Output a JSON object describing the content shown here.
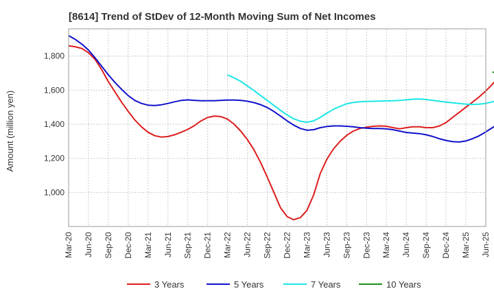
{
  "chart_data": {
    "type": "line",
    "title": "[8614]  Trend of StDev of 12-Month Moving Sum of Net Incomes",
    "ylabel": "Amount (million yen)",
    "xlabel": "",
    "ylim": [
      800,
      1960
    ],
    "yticks": [
      1000,
      1200,
      1400,
      1600,
      1800
    ],
    "ytick_labels": [
      "1,000",
      "1,200",
      "1,400",
      "1,600",
      "1,800"
    ],
    "x_tick_labels": [
      "Mar-20",
      "Jun-20",
      "Sep-20",
      "Dec-20",
      "Mar-21",
      "Jun-21",
      "Sep-21",
      "Dec-21",
      "Mar-22",
      "Jun-22",
      "Sep-22",
      "Dec-22",
      "Mar-23",
      "Jun-23",
      "Sep-23",
      "Dec-23",
      "Mar-24",
      "Jun-24",
      "Sep-24",
      "Dec-24",
      "Mar-25",
      "Jun-25"
    ],
    "grid": true,
    "legend_position": "bottom",
    "series": [
      {
        "name": "3 Years",
        "color": "#dd1c1c",
        "values": [
          [
            0,
            1860
          ],
          [
            1,
            1855
          ],
          [
            2,
            1845
          ],
          [
            3,
            1820
          ],
          [
            4,
            1780
          ],
          [
            5,
            1720
          ],
          [
            6,
            1650
          ],
          [
            7,
            1590
          ],
          [
            8,
            1530
          ],
          [
            9,
            1475
          ],
          [
            10,
            1425
          ],
          [
            11,
            1385
          ],
          [
            12,
            1353
          ],
          [
            13,
            1333
          ],
          [
            14,
            1325
          ],
          [
            15,
            1328
          ],
          [
            16,
            1338
          ],
          [
            17,
            1353
          ],
          [
            18,
            1370
          ],
          [
            19,
            1392
          ],
          [
            20,
            1420
          ],
          [
            21,
            1440
          ],
          [
            22,
            1448
          ],
          [
            23,
            1445
          ],
          [
            24,
            1430
          ],
          [
            25,
            1400
          ],
          [
            26,
            1360
          ],
          [
            27,
            1310
          ],
          [
            28,
            1250
          ],
          [
            29,
            1175
          ],
          [
            30,
            1090
          ],
          [
            31,
            1000
          ],
          [
            32,
            910
          ],
          [
            33,
            858
          ],
          [
            34,
            840
          ],
          [
            35,
            852
          ],
          [
            36,
            895
          ],
          [
            37,
            985
          ],
          [
            38,
            1110
          ],
          [
            39,
            1195
          ],
          [
            40,
            1255
          ],
          [
            41,
            1300
          ],
          [
            42,
            1335
          ],
          [
            43,
            1360
          ],
          [
            44,
            1375
          ],
          [
            45,
            1383
          ],
          [
            46,
            1388
          ],
          [
            47,
            1390
          ],
          [
            48,
            1388
          ],
          [
            49,
            1380
          ],
          [
            50,
            1373
          ],
          [
            51,
            1380
          ],
          [
            52,
            1385
          ],
          [
            53,
            1385
          ],
          [
            54,
            1380
          ],
          [
            55,
            1380
          ],
          [
            56,
            1390
          ],
          [
            57,
            1410
          ],
          [
            58,
            1440
          ],
          [
            59,
            1470
          ],
          [
            60,
            1500
          ],
          [
            61,
            1530
          ],
          [
            62,
            1560
          ],
          [
            63,
            1595
          ],
          [
            64,
            1635
          ],
          [
            65,
            1680
          ],
          [
            66,
            1720
          ]
        ]
      },
      {
        "name": "5 Years",
        "color": "#1010cc",
        "values": [
          [
            0,
            1920
          ],
          [
            1,
            1898
          ],
          [
            2,
            1870
          ],
          [
            3,
            1835
          ],
          [
            4,
            1790
          ],
          [
            5,
            1740
          ],
          [
            6,
            1690
          ],
          [
            7,
            1645
          ],
          [
            8,
            1605
          ],
          [
            9,
            1568
          ],
          [
            10,
            1540
          ],
          [
            11,
            1522
          ],
          [
            12,
            1512
          ],
          [
            13,
            1510
          ],
          [
            14,
            1514
          ],
          [
            15,
            1522
          ],
          [
            16,
            1532
          ],
          [
            17,
            1540
          ],
          [
            18,
            1543
          ],
          [
            19,
            1540
          ],
          [
            20,
            1538
          ],
          [
            21,
            1538
          ],
          [
            22,
            1538
          ],
          [
            23,
            1540
          ],
          [
            24,
            1542
          ],
          [
            25,
            1542
          ],
          [
            26,
            1540
          ],
          [
            27,
            1535
          ],
          [
            28,
            1527
          ],
          [
            29,
            1515
          ],
          [
            30,
            1498
          ],
          [
            31,
            1475
          ],
          [
            32,
            1448
          ],
          [
            33,
            1420
          ],
          [
            34,
            1395
          ],
          [
            35,
            1375
          ],
          [
            36,
            1365
          ],
          [
            37,
            1368
          ],
          [
            38,
            1380
          ],
          [
            39,
            1387
          ],
          [
            40,
            1390
          ],
          [
            41,
            1390
          ],
          [
            42,
            1388
          ],
          [
            43,
            1385
          ],
          [
            44,
            1380
          ],
          [
            45,
            1377
          ],
          [
            46,
            1375
          ],
          [
            47,
            1375
          ],
          [
            48,
            1373
          ],
          [
            49,
            1368
          ],
          [
            50,
            1360
          ],
          [
            51,
            1352
          ],
          [
            52,
            1348
          ],
          [
            53,
            1345
          ],
          [
            54,
            1338
          ],
          [
            55,
            1328
          ],
          [
            56,
            1315
          ],
          [
            57,
            1305
          ],
          [
            58,
            1298
          ],
          [
            59,
            1296
          ],
          [
            60,
            1302
          ],
          [
            61,
            1315
          ],
          [
            62,
            1332
          ],
          [
            63,
            1355
          ],
          [
            64,
            1380
          ],
          [
            65,
            1405
          ],
          [
            66,
            1432
          ]
        ]
      },
      {
        "name": "7 Years",
        "color": "#1ae6e6",
        "values": [
          [
            24,
            1690
          ],
          [
            25,
            1672
          ],
          [
            26,
            1652
          ],
          [
            27,
            1625
          ],
          [
            28,
            1598
          ],
          [
            29,
            1568
          ],
          [
            30,
            1540
          ],
          [
            31,
            1510
          ],
          [
            32,
            1482
          ],
          [
            33,
            1455
          ],
          [
            34,
            1432
          ],
          [
            35,
            1418
          ],
          [
            36,
            1412
          ],
          [
            37,
            1420
          ],
          [
            38,
            1440
          ],
          [
            39,
            1465
          ],
          [
            40,
            1488
          ],
          [
            41,
            1505
          ],
          [
            42,
            1520
          ],
          [
            43,
            1528
          ],
          [
            44,
            1532
          ],
          [
            45,
            1534
          ],
          [
            46,
            1535
          ],
          [
            47,
            1536
          ],
          [
            48,
            1537
          ],
          [
            49,
            1538
          ],
          [
            50,
            1540
          ],
          [
            51,
            1543
          ],
          [
            52,
            1547
          ],
          [
            53,
            1548
          ],
          [
            54,
            1545
          ],
          [
            55,
            1540
          ],
          [
            56,
            1535
          ],
          [
            57,
            1530
          ],
          [
            58,
            1526
          ],
          [
            59,
            1522
          ],
          [
            60,
            1518
          ],
          [
            61,
            1516
          ],
          [
            62,
            1518
          ],
          [
            63,
            1522
          ],
          [
            64,
            1532
          ],
          [
            65,
            1542
          ],
          [
            66,
            1552
          ]
        ]
      },
      {
        "name": "10 Years",
        "color": "#1e8c1e",
        "values": [
          [
            64,
            1705
          ],
          [
            65,
            1703
          ],
          [
            66,
            1702
          ]
        ]
      }
    ]
  }
}
